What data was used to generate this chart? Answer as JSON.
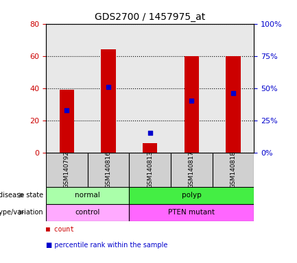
{
  "title": "GDS2700 / 1457975_at",
  "samples": [
    "GSM140792",
    "GSM140816",
    "GSM140813",
    "GSM140817",
    "GSM140818"
  ],
  "counts": [
    39,
    64,
    6,
    60,
    60
  ],
  "percentile_ranks": [
    33,
    51,
    15,
    40,
    46
  ],
  "left_ylim": [
    0,
    80
  ],
  "right_ylim": [
    0,
    100
  ],
  "left_yticks": [
    0,
    20,
    40,
    60,
    80
  ],
  "right_yticks": [
    0,
    25,
    50,
    75,
    100
  ],
  "right_yticklabels": [
    "0%",
    "25%",
    "50%",
    "75%",
    "100%"
  ],
  "bar_color": "#cc0000",
  "marker_color": "#0000cc",
  "disease_state": [
    "normal",
    "normal",
    "polyp",
    "polyp",
    "polyp"
  ],
  "disease_state_groups": [
    {
      "label": "normal",
      "span": [
        0,
        2
      ],
      "color": "#aaffaa"
    },
    {
      "label": "polyp",
      "span": [
        2,
        5
      ],
      "color": "#44ee44"
    }
  ],
  "genotype_groups": [
    {
      "label": "control",
      "span": [
        0,
        2
      ],
      "color": "#ffaaff"
    },
    {
      "label": "PTEN mutant",
      "span": [
        2,
        5
      ],
      "color": "#ff66ff"
    }
  ],
  "legend_items": [
    {
      "label": "count",
      "color": "#cc0000"
    },
    {
      "label": "percentile rank within the sample",
      "color": "#0000cc"
    }
  ],
  "xlabel_color": "#cc0000",
  "ylabel_left_color": "#cc0000",
  "ylabel_right_color": "#0000cc",
  "grid_color": "black",
  "grid_linestyle": "dotted",
  "background_color": "#ffffff",
  "plot_bg_color": "#e8e8e8"
}
